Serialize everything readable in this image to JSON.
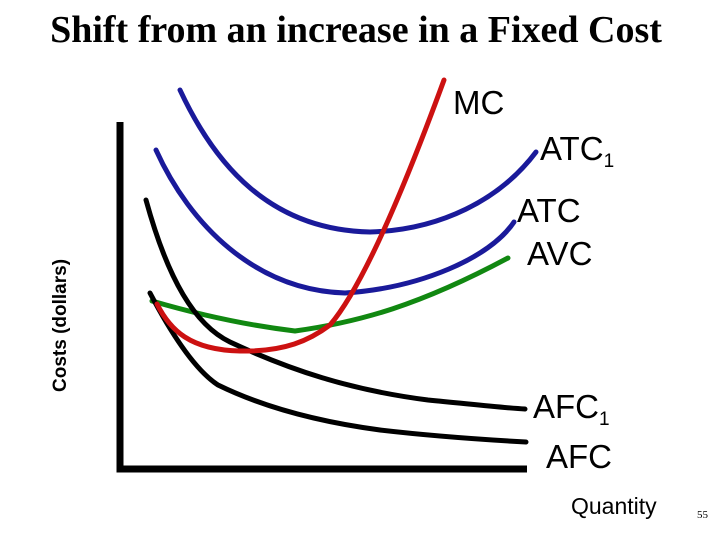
{
  "slide": {
    "title": "Shift from an increase in a Fixed Cost",
    "page_number": "55"
  },
  "axes": {
    "y_label": "Costs (dollars)",
    "x_label": "Quantity"
  },
  "curves": {
    "mc": {
      "label": "MC",
      "color": "#cc1111"
    },
    "atc1": {
      "label": "ATC",
      "subscript": "1",
      "color": "#1a1a9a"
    },
    "atc": {
      "label": "ATC",
      "color": "#1a1a9a"
    },
    "avc": {
      "label": "AVC",
      "color": "#118811"
    },
    "afc1": {
      "label": "AFC",
      "subscript": "1",
      "color": "#000000"
    },
    "afc": {
      "label": "AFC",
      "color": "#000000"
    }
  }
}
